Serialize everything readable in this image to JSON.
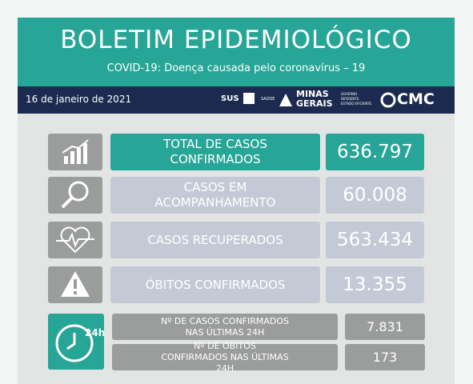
{
  "header": {
    "title": "BOLETIM EPIDEMIOLÓGICO",
    "subtitle": "COVID-19: Doença causada pelo coronavírus – 19"
  },
  "bar": {
    "date": "16 de janeiro de 2021",
    "logos": {
      "sus": "SUS",
      "saude": "SAÚDE",
      "minas": "MINAS",
      "gerais": "GERAIS",
      "slogan": "GOVERNO DIFERENTE. ESTADO EFICIENTE.",
      "cmc": "CMC"
    }
  },
  "rows": [
    {
      "label": "TOTAL DE CASOS CONFIRMADOS",
      "value": "636.797"
    },
    {
      "label": "CASOS EM ACOMPANHAMENTO",
      "value": "60.008"
    },
    {
      "label": "CASOS RECUPERADOS",
      "value": "563.434"
    },
    {
      "label": "ÓBITOS CONFIRMADOS",
      "value": "13.355"
    }
  ],
  "last24": [
    {
      "label": "Nº DE CASOS CONFIRMADOS NAS ÚLTIMAS 24H",
      "value": "7.831"
    },
    {
      "label": "Nº DE ÓBITOS CONFIRMADOS NAS ÚLTIMAS 24H",
      "value": "173"
    }
  ],
  "icon24": "24h"
}
